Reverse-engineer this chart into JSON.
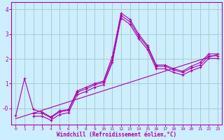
{
  "xlabel": "Windchill (Refroidissement éolien,°C)",
  "background_color": "#cceeff",
  "grid_color": "#aacccc",
  "line_color": "#aa00aa",
  "xlim": [
    -0.5,
    23.5
  ],
  "ylim": [
    -0.65,
    4.3
  ],
  "yticks": [
    0,
    1,
    2,
    3,
    4
  ],
  "ytick_labels": [
    "-0",
    "1",
    "2",
    "3",
    "4"
  ],
  "xticks": [
    0,
    1,
    2,
    3,
    4,
    5,
    6,
    7,
    8,
    9,
    10,
    11,
    12,
    13,
    14,
    15,
    16,
    17,
    18,
    19,
    20,
    21,
    22,
    23
  ],
  "series_main": {
    "x": [
      0,
      1,
      2,
      3,
      4,
      5,
      6,
      7,
      8,
      9,
      10,
      11,
      12,
      13,
      14,
      15,
      16,
      17,
      18,
      19,
      20,
      21,
      22,
      23
    ],
    "y": [
      -0.3,
      1.2,
      -0.05,
      -0.15,
      -0.35,
      -0.1,
      -0.05,
      0.7,
      0.85,
      1.0,
      1.1,
      2.1,
      3.85,
      3.6,
      3.0,
      2.55,
      1.75,
      1.75,
      1.6,
      1.5,
      1.7,
      1.85,
      2.2,
      2.2
    ]
  },
  "series_line2": {
    "x": [
      2,
      3,
      4,
      5,
      6,
      7,
      8,
      9,
      10,
      11,
      12,
      13,
      14,
      15,
      16,
      17,
      18,
      19,
      20,
      21,
      22,
      23
    ],
    "y": [
      -0.2,
      -0.2,
      -0.38,
      -0.15,
      -0.08,
      0.65,
      0.78,
      0.95,
      1.05,
      1.95,
      3.75,
      3.5,
      2.92,
      2.48,
      1.7,
      1.7,
      1.55,
      1.45,
      1.62,
      1.75,
      2.12,
      2.12
    ]
  },
  "series_line3": {
    "x": [
      2,
      3,
      4,
      5,
      6,
      7,
      8,
      9,
      10,
      11,
      12,
      13,
      14,
      15,
      16,
      17,
      18,
      19,
      20,
      21,
      22,
      23
    ],
    "y": [
      -0.32,
      -0.32,
      -0.48,
      -0.25,
      -0.18,
      0.55,
      0.68,
      0.85,
      0.95,
      1.85,
      3.65,
      3.4,
      2.82,
      2.38,
      1.6,
      1.6,
      1.45,
      1.35,
      1.52,
      1.65,
      2.02,
      2.02
    ]
  },
  "series_linear": {
    "x": [
      0,
      23
    ],
    "y": [
      -0.42,
      2.18
    ]
  }
}
